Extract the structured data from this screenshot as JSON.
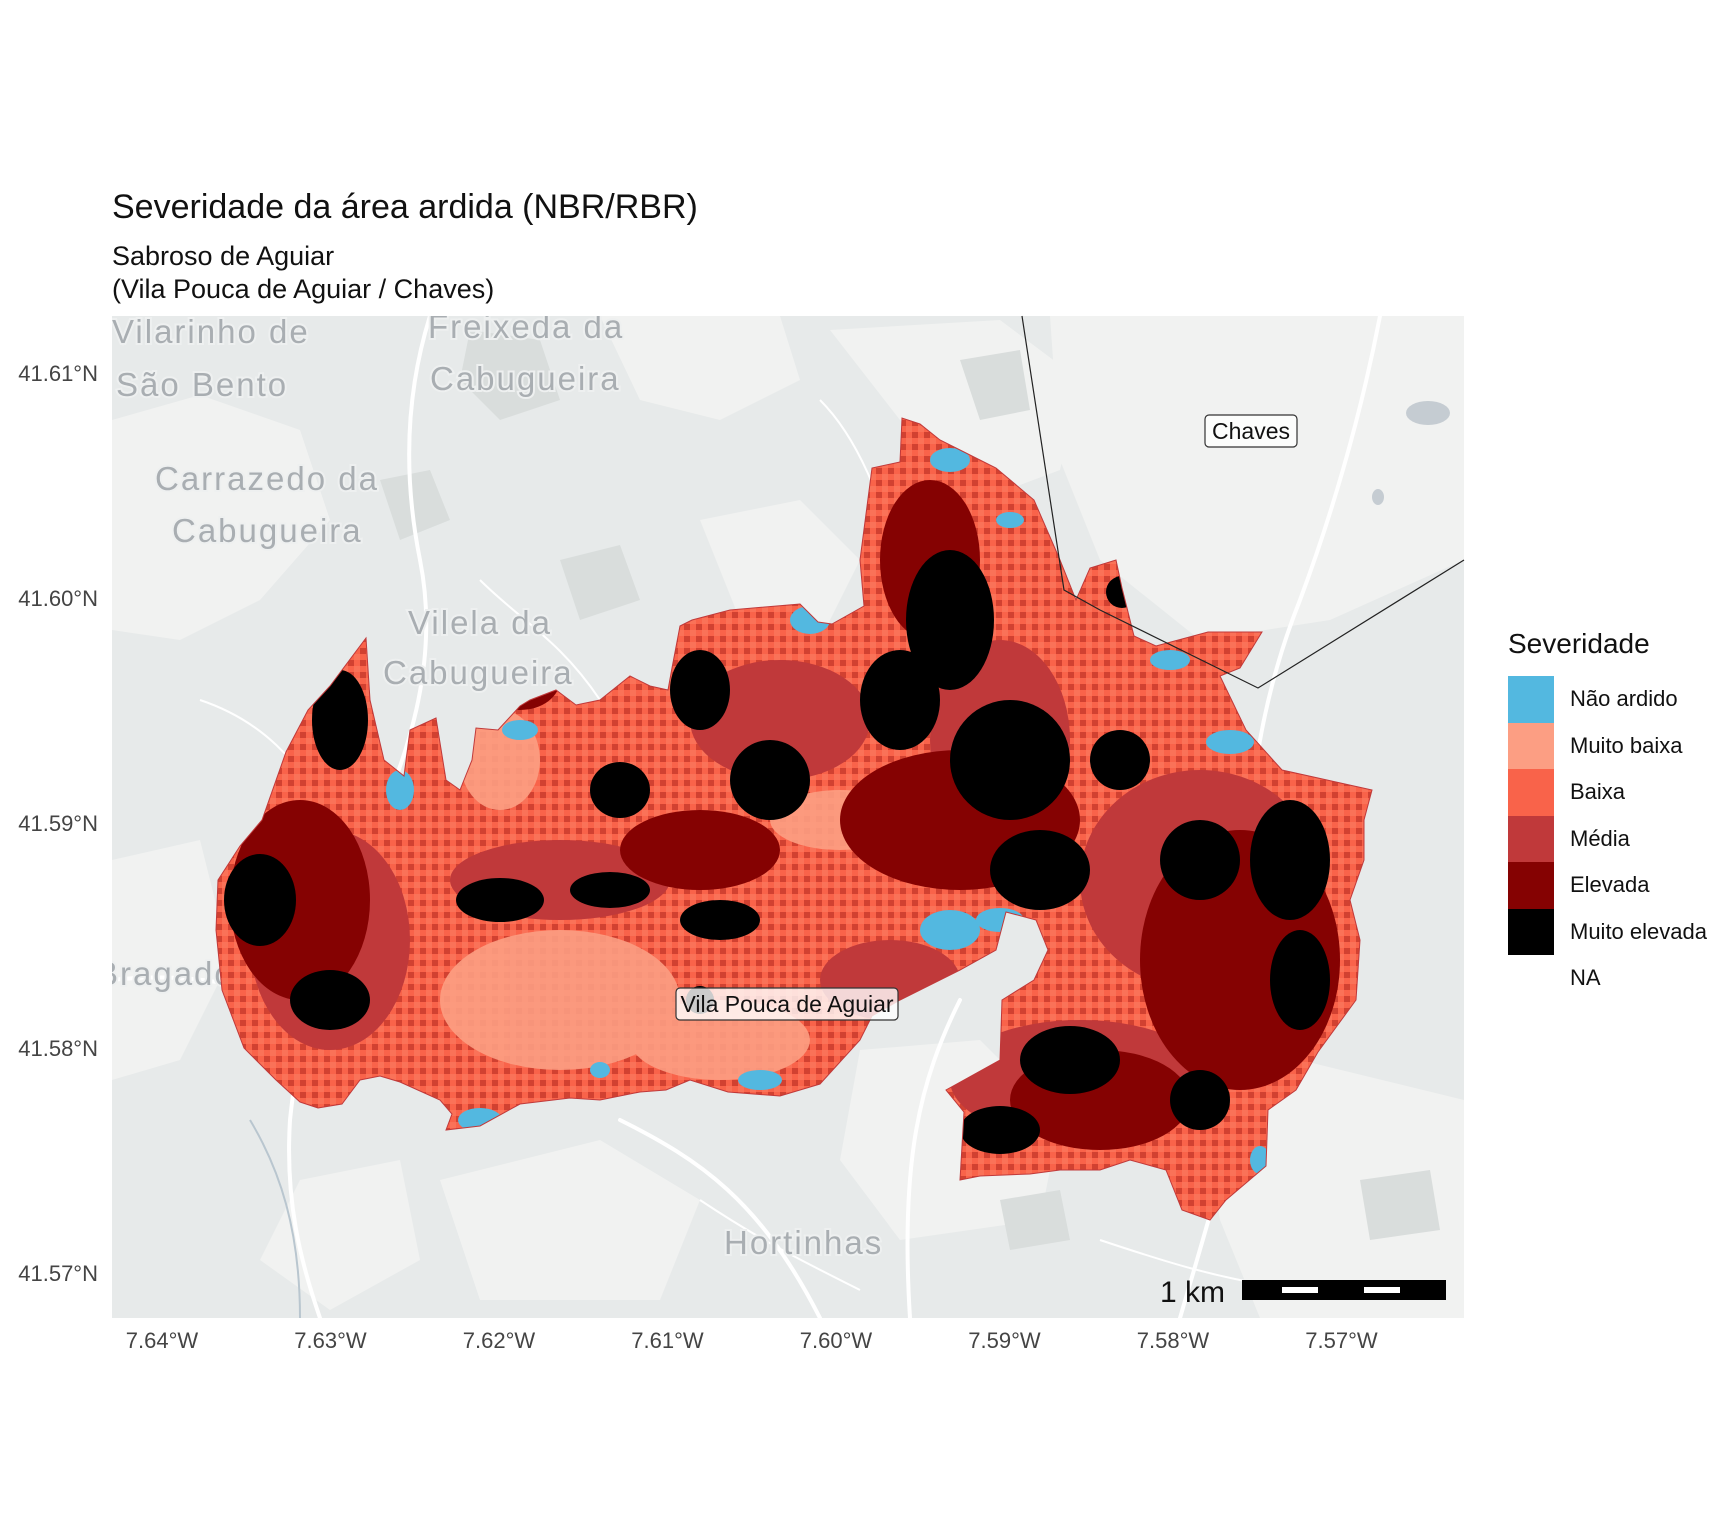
{
  "title": "Severidade da área ardida (NBR/RBR)",
  "subtitle_line1": "Sabroso de Aguiar",
  "subtitle_line2": "(Vila Pouca de Aguiar / Chaves)",
  "y_axis": {
    "ticks": [
      {
        "value": 41.61,
        "label": "41.61°N"
      },
      {
        "value": 41.6,
        "label": "41.60°N"
      },
      {
        "value": 41.59,
        "label": "41.59°N"
      },
      {
        "value": 41.58,
        "label": "41.58°N"
      },
      {
        "value": 41.57,
        "label": "41.57°N"
      }
    ]
  },
  "x_axis": {
    "ticks": [
      {
        "value": -7.64,
        "label": "7.64°W"
      },
      {
        "value": -7.63,
        "label": "7.63°W"
      },
      {
        "value": -7.62,
        "label": "7.62°W"
      },
      {
        "value": -7.61,
        "label": "7.61°W"
      },
      {
        "value": -7.6,
        "label": "7.60°W"
      },
      {
        "value": -7.59,
        "label": "7.59°W"
      },
      {
        "value": -7.58,
        "label": "7.58°W"
      },
      {
        "value": -7.57,
        "label": "7.57°W"
      }
    ]
  },
  "basemap_places": [
    {
      "lines": [
        "Vilarinho de",
        "São Bento"
      ]
    },
    {
      "lines": [
        "Freixeda da",
        "Cabugueira"
      ]
    },
    {
      "lines": [
        "Carrazedo da",
        "Cabugueira"
      ]
    },
    {
      "lines": [
        "Vilela da",
        "Cabugueira"
      ]
    },
    {
      "lines": [
        "Bragado"
      ]
    },
    {
      "lines": [
        "Hortinhas"
      ]
    }
  ],
  "municipality_labels": [
    "Chaves",
    "Vila Pouca de Aguiar"
  ],
  "scale_bar": {
    "label": "1 km"
  },
  "legend": {
    "title": "Severidade",
    "items": [
      {
        "label": "Não ardido",
        "color": "#53b8e0"
      },
      {
        "label": "Muito baixa",
        "color": "#fc9e83"
      },
      {
        "label": "Baixa",
        "color": "#f9634a"
      },
      {
        "label": "Média",
        "color": "#c0393a"
      },
      {
        "label": "Elevada",
        "color": "#850202"
      },
      {
        "label": "Muito elevada",
        "color": "#000000"
      },
      {
        "label": "NA",
        "color": "transparent"
      }
    ]
  }
}
